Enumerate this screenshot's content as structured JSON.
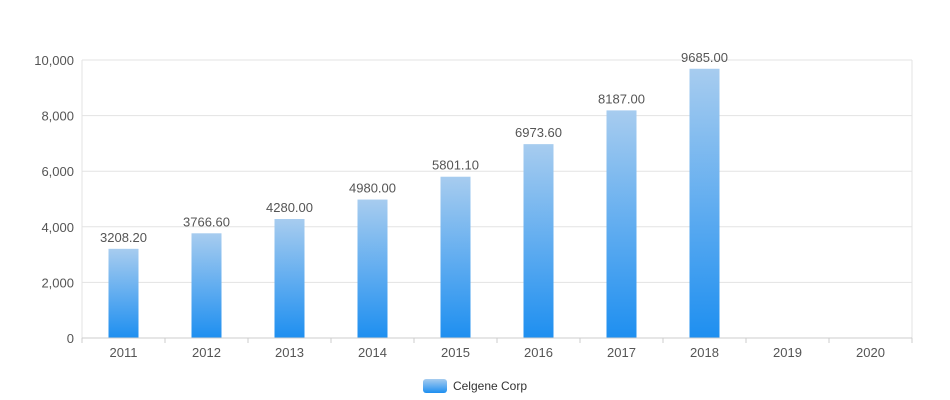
{
  "chart_data": {
    "type": "bar",
    "categories": [
      "2011",
      "2012",
      "2013",
      "2014",
      "2015",
      "2016",
      "2017",
      "2018",
      "2019",
      "2020"
    ],
    "series": [
      {
        "name": "Celgene Corp",
        "values": [
          3208.2,
          3766.6,
          4280.0,
          4980.0,
          5801.1,
          6973.6,
          8187.0,
          9685.0,
          null,
          null
        ],
        "labels": [
          "3208.20",
          "3766.60",
          "4280.00",
          "4980.00",
          "5801.10",
          "6973.60",
          "8187.00",
          "9685.00",
          "",
          ""
        ]
      }
    ],
    "yticks": [
      "0",
      "2,000",
      "4,000",
      "6,000",
      "8,000",
      "10,000"
    ],
    "ytick_values": [
      0,
      2000,
      4000,
      6000,
      8000,
      10000
    ],
    "ylim": [
      0,
      10000
    ],
    "grid": true,
    "legend_position": "bottom-center",
    "colors": {
      "bar_top": "#a7ccef",
      "bar_bottom": "#1e8ff0",
      "grid": "#e3e3e3",
      "axis": "#cccccc",
      "tick_text": "#555555",
      "label_text": "#555555"
    }
  }
}
